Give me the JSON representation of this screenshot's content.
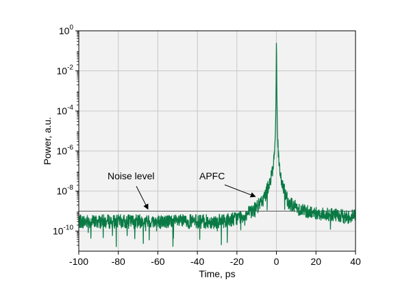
{
  "chart_data": {
    "type": "line",
    "title": "",
    "xlabel": "Time, ps",
    "ylabel": "Power, a.u.",
    "xlim": [
      -100,
      40
    ],
    "ylim": [
      1e-11,
      1
    ],
    "yscale": "log",
    "grid": true,
    "legend": "none",
    "x_ticks": [
      -100,
      -80,
      -60,
      -40,
      -20,
      0,
      20,
      40
    ],
    "x_tick_labels": [
      "-100",
      "-80",
      "-60",
      "-40",
      "-20",
      "0",
      "20",
      "40"
    ],
    "y_ticks": [
      1e-10,
      1e-08,
      1e-06,
      0.0001,
      0.01,
      1
    ],
    "y_tick_labels": [
      {
        "base": "10",
        "exp": "-10"
      },
      {
        "base": "10",
        "exp": "-8"
      },
      {
        "base": "10",
        "exp": "-6"
      },
      {
        "base": "10",
        "exp": "-4"
      },
      {
        "base": "10",
        "exp": "-2"
      },
      {
        "base": "10",
        "exp": "0"
      }
    ],
    "colors": {
      "trace": "#0a7a45",
      "noise_line": "#555555",
      "plot_background": "#f2f2f2",
      "grid": "#c8c8c8"
    },
    "noise_level": 1e-09,
    "annotations": [
      {
        "text": "Noise level",
        "x": -65,
        "y": 1e-09
      },
      {
        "text": "APFC",
        "x": -10,
        "y": 1e-08
      }
    ],
    "series": [
      {
        "x": [
          -100,
          -90,
          -80,
          -70,
          -60,
          -50,
          -40,
          -30,
          -25,
          -20,
          -15,
          -12,
          -10,
          -8,
          -6,
          -5,
          -4,
          -3,
          -2,
          -1,
          -0.5,
          -0.2,
          0,
          0.2,
          0.5,
          1,
          2,
          3,
          4,
          5,
          6,
          8,
          10,
          15,
          20,
          25,
          30,
          35,
          40
        ],
        "y": [
          3e-10,
          3e-10,
          3e-10,
          3e-10,
          3e-10,
          3e-10,
          3e-10,
          3e-10,
          3.5e-10,
          4.5e-10,
          7e-10,
          1e-09,
          1.5e-09,
          2.5e-09,
          5e-09,
          1e-08,
          2e-08,
          4e-08,
          1e-07,
          8e-07,
          1e-05,
          0.001,
          1,
          0.001,
          1e-05,
          5e-07,
          5e-08,
          2e-08,
          1e-08,
          5e-09,
          3e-09,
          2e-09,
          1.5e-09,
          1e-09,
          8e-10,
          7e-10,
          6e-10,
          5e-10,
          6e-10
        ]
      }
    ]
  }
}
